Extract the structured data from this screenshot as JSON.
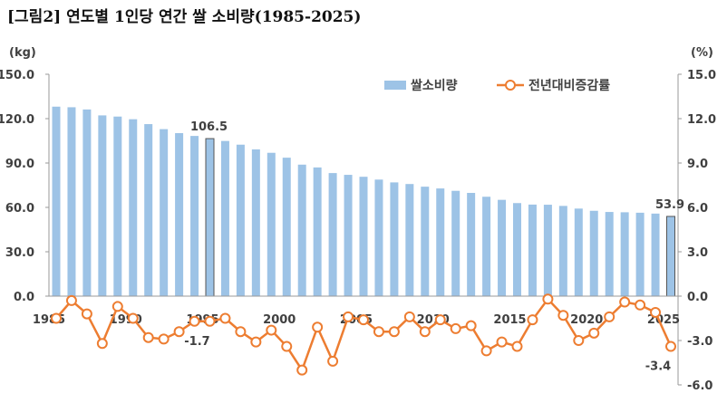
{
  "title": "[그림2]  연도별 1인당 연간 쌀 소비량(1985-2025)",
  "chart_data": {
    "type": "bar+line",
    "title": "[그림2]  연도별 1인당 연간 쌀 소비량(1985-2025)",
    "left_unit": "(kg)",
    "right_unit": "(%)",
    "left_ylim": [
      0,
      150
    ],
    "right_ylim": [
      -6,
      15
    ],
    "left_ticks": [
      "0.0",
      "30.0",
      "60.0",
      "90.0",
      "120.0",
      "150.0"
    ],
    "right_ticks": [
      "-6.0",
      "-3.0",
      "0.0",
      "3.0",
      "6.0",
      "9.0",
      "12.0",
      "15.0"
    ],
    "x_tick_labels": [
      "1985",
      "1990",
      "1995",
      "2000",
      "2005",
      "2010",
      "2015",
      "2020",
      "2025"
    ],
    "legend_position": "top-right",
    "years": [
      1985,
      1986,
      1987,
      1988,
      1989,
      1990,
      1991,
      1992,
      1993,
      1994,
      1995,
      1996,
      1997,
      1998,
      1999,
      2000,
      2001,
      2002,
      2003,
      2004,
      2005,
      2006,
      2007,
      2008,
      2009,
      2010,
      2011,
      2012,
      2013,
      2014,
      2015,
      2016,
      2017,
      2018,
      2019,
      2020,
      2021,
      2022,
      2023,
      2024,
      2025
    ],
    "series": [
      {
        "name": "쌀소비량",
        "type": "bar",
        "axis": "left",
        "color": "#9dc3e6",
        "values": [
          128.1,
          127.7,
          126.2,
          122.2,
          121.4,
          119.6,
          116.3,
          112.9,
          110.2,
          108.3,
          106.5,
          104.9,
          102.4,
          99.2,
          96.9,
          93.6,
          88.9,
          87.0,
          83.2,
          82.0,
          80.7,
          78.8,
          76.9,
          75.8,
          74.0,
          72.8,
          71.2,
          69.8,
          67.2,
          65.1,
          62.9,
          61.9,
          61.8,
          61.0,
          59.2,
          57.7,
          56.9,
          56.7,
          56.4,
          55.8,
          53.9
        ]
      },
      {
        "name": "전년대비증감률",
        "type": "line",
        "axis": "right",
        "color": "#ed7d31",
        "values": [
          -1.5,
          -0.3,
          -1.2,
          -3.2,
          -0.7,
          -1.5,
          -2.8,
          -2.9,
          -2.4,
          -1.7,
          -1.7,
          -1.5,
          -2.4,
          -3.1,
          -2.3,
          -3.4,
          -5.0,
          -2.1,
          -4.4,
          -1.4,
          -1.6,
          -2.4,
          -2.4,
          -1.4,
          -2.4,
          -1.6,
          -2.2,
          -2.0,
          -3.7,
          -3.1,
          -3.4,
          -1.6,
          -0.2,
          -1.3,
          -3.0,
          -2.5,
          -1.4,
          -0.4,
          -0.6,
          -1.1,
          -3.4
        ]
      }
    ],
    "annotations": [
      {
        "year": 1995,
        "series": "쌀소비량",
        "label": "106.5"
      },
      {
        "year": 2025,
        "series": "쌀소비량",
        "label": "53.9"
      },
      {
        "year": 1995,
        "series": "전년대비증감률",
        "label": "-1.7"
      },
      {
        "year": 2025,
        "series": "전년대비증감률",
        "label": "-3.4"
      }
    ]
  }
}
